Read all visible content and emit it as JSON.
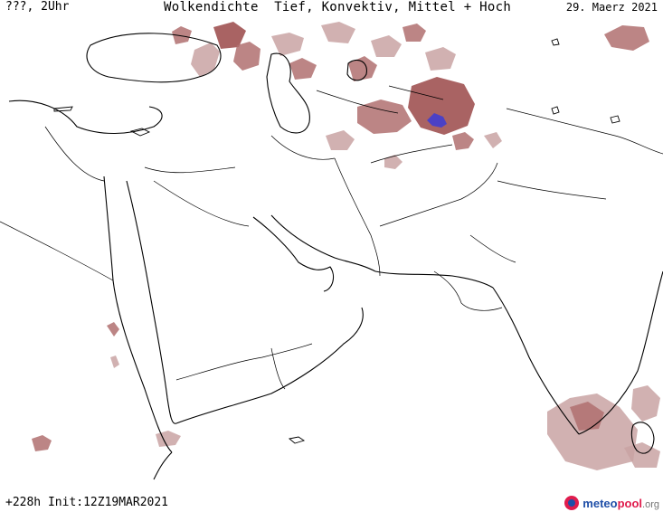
{
  "header": {
    "left": "???, 2Uhr",
    "title": "Wolkendichte  Tief, Konvektiv, Mittel + Hoch",
    "date": "29. Maerz 2021"
  },
  "footer": {
    "run_info": "+228h Init:12Z19MAR2021",
    "logo_text": {
      "a": "meteo",
      "b": "pool",
      "c": ".org"
    }
  },
  "colors": {
    "cloud_light": "#c9a3a3",
    "cloud_mid": "#b07070",
    "cloud_dark": "#9a4848",
    "convective": "#3b3bd6",
    "coastline": "#000000",
    "background": "#ffffff"
  }
}
